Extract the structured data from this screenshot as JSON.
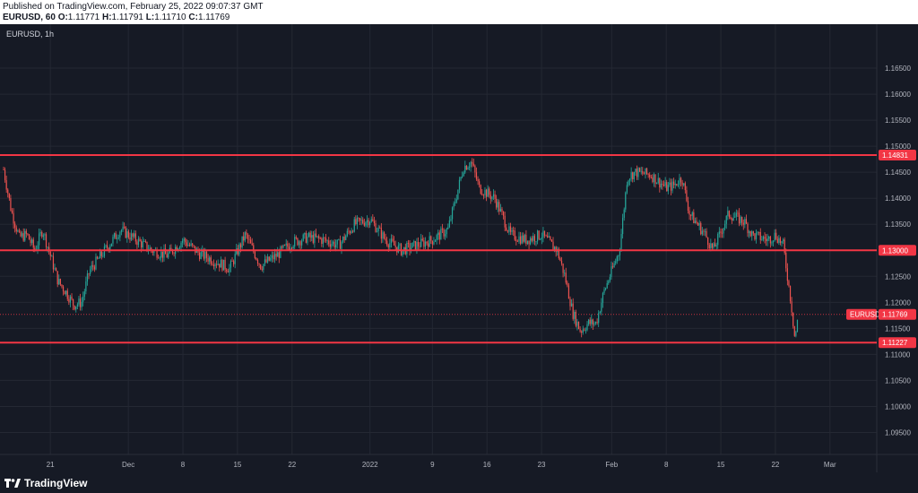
{
  "header": {
    "published": "Published on TradingView.com, February 25, 2022 09:07:37 GMT",
    "symbol_tf": "EURUSD, 60",
    "o_label": "O:",
    "o_value": "1.11771",
    "h_label": "H:",
    "h_value": "1.11791",
    "l_label": "L:",
    "l_value": "1.11710",
    "c_label": "C:",
    "c_value": "1.11769"
  },
  "chart_label": "EURUSD, 1h",
  "footer": {
    "brand": "TradingView"
  },
  "colors": {
    "background": "#161a25",
    "grid": "#242833",
    "up_candle": "#26a69a",
    "down_candle": "#ef5350",
    "level_line": "#f23645",
    "price_tag": "#f23645",
    "axis_text": "#b2b5be"
  },
  "chart_data": {
    "type": "candlestick",
    "symbol": "EURUSD",
    "ylim": [
      1.0925,
      1.17
    ],
    "y_ticks": [
      "1.16500",
      "1.16000",
      "1.15500",
      "1.15000",
      "1.14500",
      "1.14000",
      "1.13500",
      "1.13000",
      "1.12500",
      "1.12000",
      "1.11500",
      "1.11000",
      "1.10500",
      "1.10000",
      "1.09500"
    ],
    "x_ticks": [
      {
        "date": "2021-11-21",
        "label": "21"
      },
      {
        "date": "2021-12-01",
        "label": "Dec"
      },
      {
        "date": "2021-12-08",
        "label": "8"
      },
      {
        "date": "2021-12-15",
        "label": "15"
      },
      {
        "date": "2021-12-22",
        "label": "22"
      },
      {
        "date": "2022-01-01",
        "label": "2022"
      },
      {
        "date": "2022-01-09",
        "label": "9"
      },
      {
        "date": "2022-01-16",
        "label": "16"
      },
      {
        "date": "2022-01-23",
        "label": "23"
      },
      {
        "date": "2022-02-01",
        "label": "Feb"
      },
      {
        "date": "2022-02-08",
        "label": "8"
      },
      {
        "date": "2022-02-15",
        "label": "15"
      },
      {
        "date": "2022-02-22",
        "label": "22"
      },
      {
        "date": "2022-03-01",
        "label": "Mar"
      }
    ],
    "x_start": "2021-11-15",
    "x_end": "2022-03-07",
    "horizontal_levels": [
      {
        "value": 1.14831,
        "label": "1.14831"
      },
      {
        "value": 1.13,
        "label": "1.13000"
      },
      {
        "value": 1.11227,
        "label": "1.11227"
      }
    ],
    "last_price": {
      "symbol": "EURUSD",
      "value": 1.11769,
      "label": "1.11769"
    },
    "price_path": [
      [
        "2021-11-15",
        1.1455
      ],
      [
        "2021-11-16",
        1.1375
      ],
      [
        "2021-11-17",
        1.1325
      ],
      [
        "2021-11-18",
        1.133
      ],
      [
        "2021-11-19",
        1.13
      ],
      [
        "2021-11-20",
        1.134
      ],
      [
        "2021-11-21",
        1.129
      ],
      [
        "2021-11-22",
        1.124
      ],
      [
        "2021-11-23",
        1.122
      ],
      [
        "2021-11-24",
        1.1195
      ],
      [
        "2021-11-25",
        1.12
      ],
      [
        "2021-11-26",
        1.126
      ],
      [
        "2021-11-28",
        1.13
      ],
      [
        "2021-11-30",
        1.134
      ],
      [
        "2021-12-02",
        1.132
      ],
      [
        "2021-12-04",
        1.13
      ],
      [
        "2021-12-06",
        1.129
      ],
      [
        "2021-12-08",
        1.132
      ],
      [
        "2021-12-10",
        1.1295
      ],
      [
        "2021-12-12",
        1.128
      ],
      [
        "2021-12-14",
        1.1265
      ],
      [
        "2021-12-16",
        1.133
      ],
      [
        "2021-12-18",
        1.127
      ],
      [
        "2021-12-20",
        1.129
      ],
      [
        "2021-12-22",
        1.1315
      ],
      [
        "2021-12-24",
        1.1325
      ],
      [
        "2021-12-26",
        1.132
      ],
      [
        "2021-12-28",
        1.131
      ],
      [
        "2021-12-30",
        1.135
      ],
      [
        "2022-01-01",
        1.136
      ],
      [
        "2022-01-03",
        1.132
      ],
      [
        "2022-01-05",
        1.13
      ],
      [
        "2022-01-07",
        1.131
      ],
      [
        "2022-01-09",
        1.132
      ],
      [
        "2022-01-11",
        1.134
      ],
      [
        "2022-01-13",
        1.146
      ],
      [
        "2022-01-14",
        1.147
      ],
      [
        "2022-01-15",
        1.142
      ],
      [
        "2022-01-17",
        1.14
      ],
      [
        "2022-01-19",
        1.133
      ],
      [
        "2022-01-21",
        1.132
      ],
      [
        "2022-01-23",
        1.133
      ],
      [
        "2022-01-25",
        1.13
      ],
      [
        "2022-01-26",
        1.125
      ],
      [
        "2022-01-27",
        1.118
      ],
      [
        "2022-01-28",
        1.1145
      ],
      [
        "2022-01-29",
        1.116
      ],
      [
        "2022-01-30",
        1.116
      ],
      [
        "2022-01-31",
        1.122
      ],
      [
        "2022-02-01",
        1.126
      ],
      [
        "2022-02-02",
        1.13
      ],
      [
        "2022-02-03",
        1.144
      ],
      [
        "2022-02-04",
        1.145
      ],
      [
        "2022-02-06",
        1.1445
      ],
      [
        "2022-02-08",
        1.142
      ],
      [
        "2022-02-09",
        1.1425
      ],
      [
        "2022-02-10",
        1.144
      ],
      [
        "2022-02-11",
        1.137
      ],
      [
        "2022-02-13",
        1.133
      ],
      [
        "2022-02-14",
        1.13
      ],
      [
        "2022-02-16",
        1.137
      ],
      [
        "2022-02-18",
        1.1355
      ],
      [
        "2022-02-19",
        1.133
      ],
      [
        "2022-02-21",
        1.132
      ],
      [
        "2022-02-22",
        1.133
      ],
      [
        "2022-02-23",
        1.131
      ],
      [
        "2022-02-24",
        1.12
      ],
      [
        "2022-02-24T12",
        1.113
      ],
      [
        "2022-02-25",
        1.118
      ]
    ]
  }
}
